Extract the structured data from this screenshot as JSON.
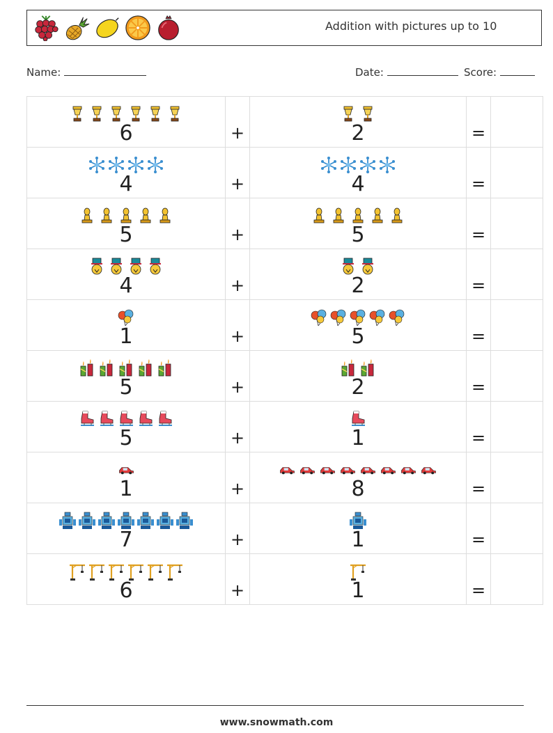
{
  "header": {
    "title": "Addition with pictures up to 10",
    "icons": [
      "raspberry-icon",
      "pineapple-icon",
      "lemon-icon",
      "orange-slice-icon",
      "pomegranate-icon"
    ]
  },
  "meta": {
    "name_label": "Name:",
    "date_label": "Date:",
    "score_label": "Score:"
  },
  "operators": {
    "plus": "+",
    "equals": "="
  },
  "problems": [
    {
      "a": 6,
      "b": 2,
      "icon": "trophy-icon"
    },
    {
      "a": 4,
      "b": 4,
      "icon": "snowflake-icon"
    },
    {
      "a": 5,
      "b": 5,
      "icon": "chess-bishop-icon"
    },
    {
      "a": 4,
      "b": 2,
      "icon": "snowman-hat-icon"
    },
    {
      "a": 1,
      "b": 5,
      "icon": "balloons-icon"
    },
    {
      "a": 5,
      "b": 2,
      "icon": "candles-icon"
    },
    {
      "a": 5,
      "b": 1,
      "icon": "ice-skate-icon"
    },
    {
      "a": 1,
      "b": 8,
      "icon": "car-icon"
    },
    {
      "a": 7,
      "b": 1,
      "icon": "robot-icon"
    },
    {
      "a": 6,
      "b": 1,
      "icon": "crane-icon"
    }
  ],
  "footer": {
    "website": "www.snowmath.com"
  }
}
